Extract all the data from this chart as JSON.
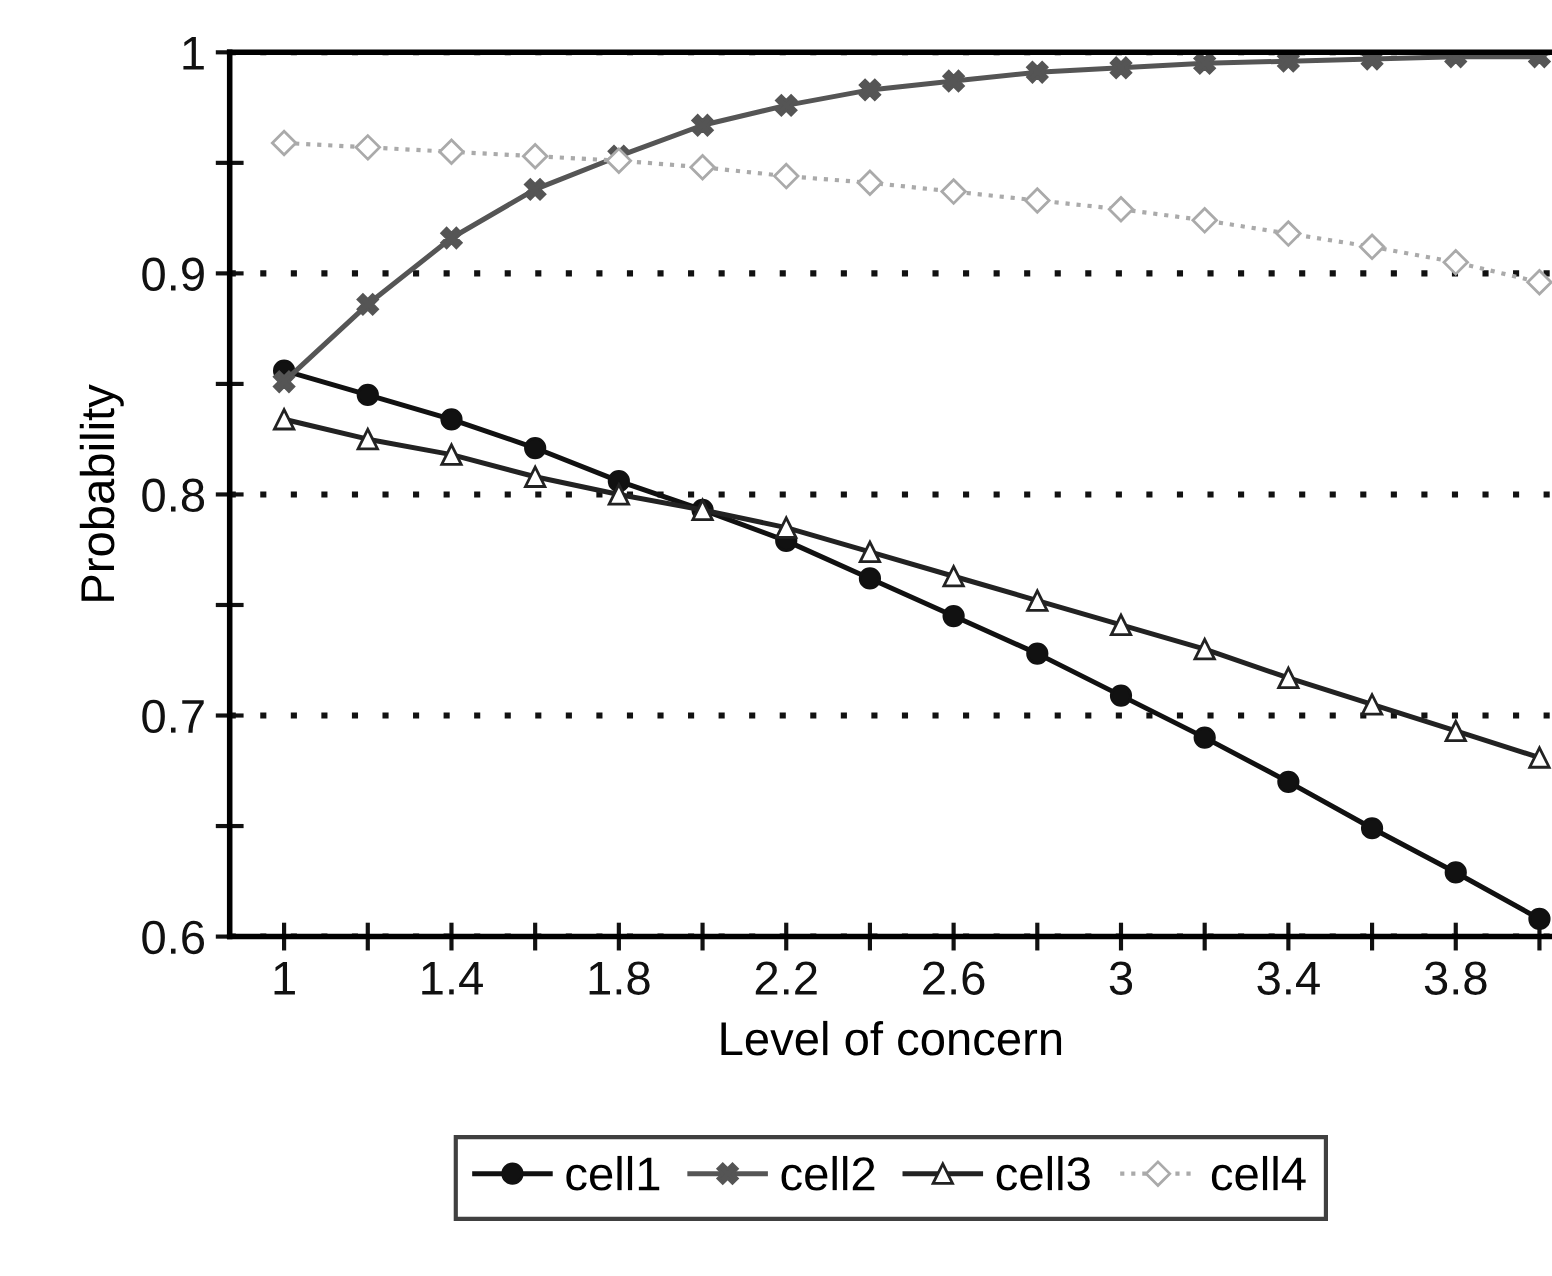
{
  "chart_data": {
    "type": "line",
    "xlabel": "Level of concern",
    "ylabel": "Probability",
    "x": [
      1,
      1.2,
      1.4,
      1.6,
      1.8,
      2,
      2.2,
      2.4,
      2.6,
      2.8,
      3,
      3.2,
      3.4,
      3.6,
      3.8,
      4
    ],
    "series": [
      {
        "name": "cell1",
        "color": "#111111",
        "marker": "circle",
        "line_style": "solid",
        "values": [
          0.856,
          0.845,
          0.834,
          0.821,
          0.806,
          0.793,
          0.779,
          0.762,
          0.745,
          0.728,
          0.709,
          0.69,
          0.67,
          0.649,
          0.629,
          0.608
        ]
      },
      {
        "name": "cell2",
        "color": "#555555",
        "marker": "cross",
        "line_style": "solid",
        "values": [
          0.851,
          0.886,
          0.916,
          0.938,
          0.953,
          0.967,
          0.976,
          0.983,
          0.987,
          0.991,
          0.993,
          0.995,
          0.996,
          0.997,
          0.998,
          0.998
        ]
      },
      {
        "name": "cell3",
        "color": "#222222",
        "marker": "triangle",
        "line_style": "solid",
        "values": [
          0.834,
          0.825,
          0.818,
          0.808,
          0.8,
          0.793,
          0.785,
          0.774,
          0.763,
          0.752,
          0.741,
          0.73,
          0.717,
          0.705,
          0.693,
          0.681
        ]
      },
      {
        "name": "cell4",
        "color": "#aaaaaa",
        "marker": "diamond",
        "line_style": "dotted",
        "values": [
          0.959,
          0.957,
          0.955,
          0.953,
          0.951,
          0.948,
          0.944,
          0.941,
          0.937,
          0.933,
          0.929,
          0.924,
          0.918,
          0.912,
          0.905,
          0.896
        ]
      }
    ],
    "xlim": [
      0.87,
      4.03
    ],
    "xticks": [
      1,
      {
        "value": 1.2,
        "label": null
      },
      1.4,
      {
        "value": 1.6,
        "label": null
      },
      1.8,
      {
        "value": 2.0,
        "label": null
      },
      2.2,
      {
        "value": 2.4,
        "label": null
      },
      2.6,
      {
        "value": 2.8,
        "label": null
      },
      3,
      {
        "value": 3.2,
        "label": null
      },
      3.4,
      {
        "value": 3.6,
        "label": null
      },
      3.8,
      {
        "value": 4.0,
        "label": null
      }
    ],
    "ylim": [
      0.6,
      1
    ],
    "yticks": [
      0.6,
      {
        "value": 0.65,
        "label": null
      },
      0.7,
      {
        "value": 0.75,
        "label": null
      },
      0.8,
      {
        "value": 0.85,
        "label": null
      },
      0.9,
      {
        "value": 0.95,
        "label": null
      },
      1
    ],
    "grid": "y",
    "legend": "bottom"
  }
}
